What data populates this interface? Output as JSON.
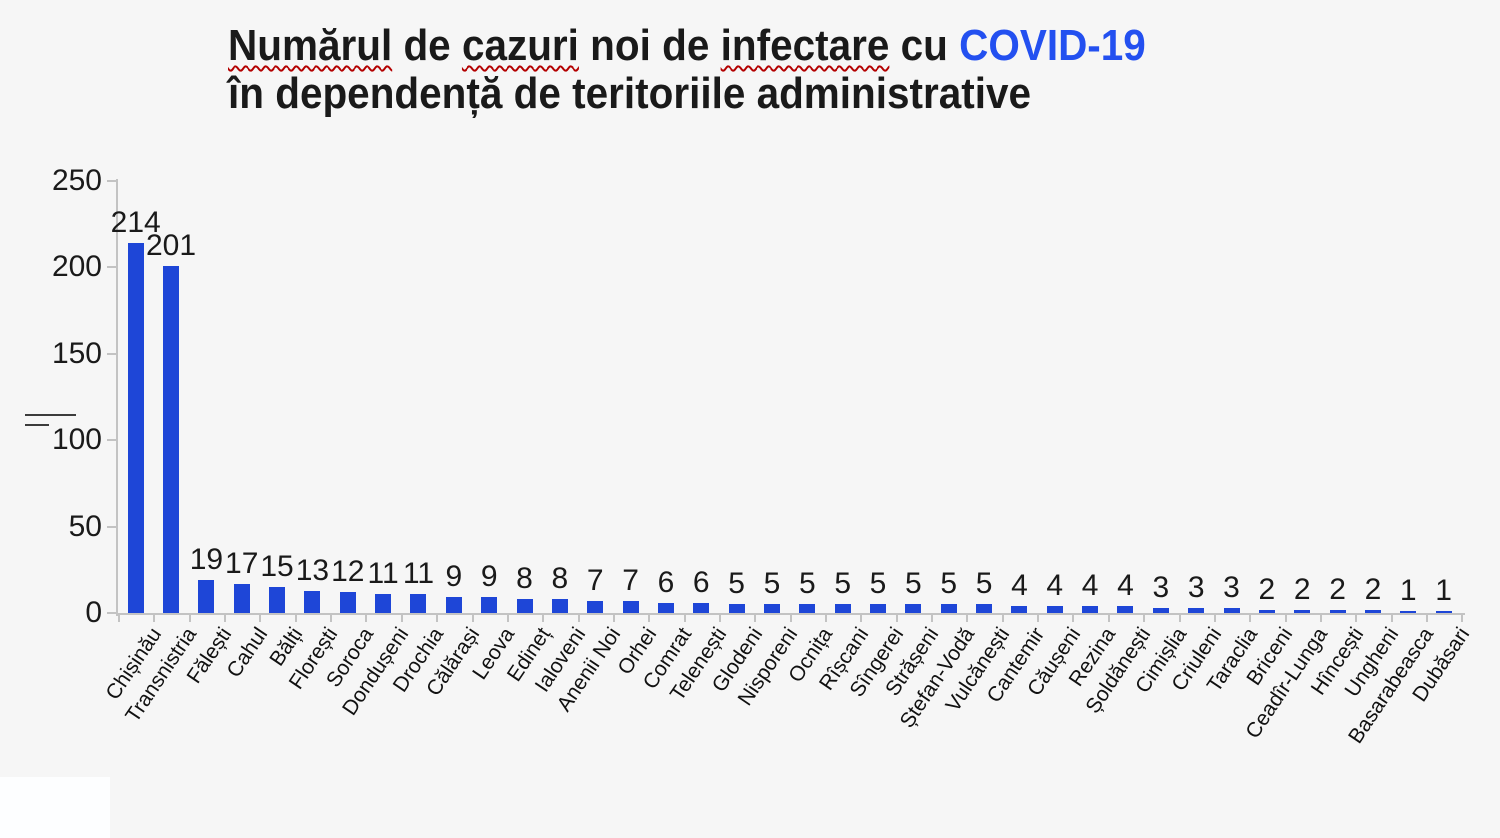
{
  "title": {
    "line1_parts": [
      {
        "text": "Numărul",
        "misspelled": true
      },
      {
        "text": " de "
      },
      {
        "text": "cazuri",
        "misspelled": true
      },
      {
        "text": " noi de "
      },
      {
        "text": "infectare",
        "misspelled": true
      },
      {
        "text": " cu "
      },
      {
        "text": "COVID-19",
        "highlight": true
      }
    ],
    "line2": "în dependență de teritoriile administrative"
  },
  "chart_data": {
    "type": "bar",
    "title": "Numărul de cazuri noi de infectare cu COVID-19 în dependență de teritoriile administrative",
    "categories": [
      "Chișinău",
      "Transnistria",
      "Fălești",
      "Cahul",
      "Bălți",
      "Florești",
      "Soroca",
      "Dondușeni",
      "Drochia",
      "Călărași",
      "Leova",
      "Edineț",
      "Ialoveni",
      "Anenii Noi",
      "Orhei",
      "Comrat",
      "Telenești",
      "Glodeni",
      "Nisporeni",
      "Ocnița",
      "Rîșcani",
      "Sîngerei",
      "Strășeni",
      "Ștefan-Vodă",
      "Vulcănești",
      "Cantemir",
      "Căușeni",
      "Rezina",
      "Șoldănești",
      "Cimișlia",
      "Criuleni",
      "Taraclia",
      "Briceni",
      "Ceadîr-Lunga",
      "Hîncești",
      "Ungheni",
      "Basarabeasca",
      "Dubăsari"
    ],
    "values": [
      214,
      201,
      19,
      17,
      15,
      13,
      12,
      11,
      11,
      9,
      9,
      8,
      8,
      7,
      7,
      6,
      6,
      5,
      5,
      5,
      5,
      5,
      5,
      5,
      5,
      4,
      4,
      4,
      4,
      3,
      3,
      3,
      2,
      2,
      2,
      2,
      1,
      1
    ],
    "xlabel": "",
    "ylabel": "",
    "ylim": [
      0,
      250
    ],
    "yticks": [
      0,
      50,
      100,
      150,
      200,
      250
    ],
    "grid": false,
    "legend": false,
    "data_labels": true
  },
  "colors": {
    "background": "#f6f6f6",
    "bar_blue": "#1e46d7",
    "covid_highlight": "#2350f0",
    "title_text": "#1a1a1a",
    "axis_gray": "#c3c3c3",
    "spellcheck_red": "#b30000"
  }
}
